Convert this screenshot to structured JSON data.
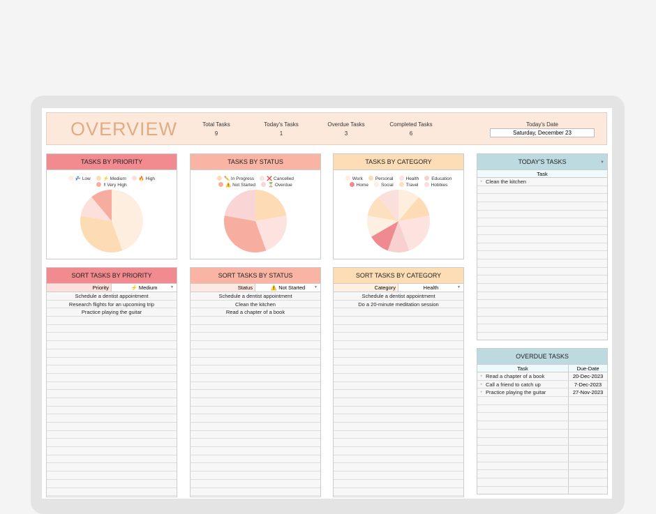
{
  "header": {
    "title": "OVERVIEW",
    "stats": [
      {
        "label": "Total Tasks",
        "value": "9"
      },
      {
        "label": "Today's Tasks",
        "value": "1"
      },
      {
        "label": "Overdue Tasks",
        "value": "3"
      },
      {
        "label": "Completed Tasks",
        "value": "6"
      }
    ],
    "date_label": "Today's Date",
    "date_value": "Saturday, December 23"
  },
  "charts": [
    {
      "title": "TASKS BY PRIORITY",
      "header_color": "#f28b8f",
      "legend_rows": [
        [
          0,
          1,
          2
        ],
        [
          3
        ]
      ],
      "chart_data": {
        "type": "pie",
        "labels": [
          "💤 Low",
          "⚡ Medium",
          "🔥 High",
          "‼ Very High"
        ],
        "values": [
          4,
          3,
          1,
          1
        ],
        "colors": [
          "#fdeee0",
          "#fddcb5",
          "#fbe0dc",
          "#f6ada0"
        ]
      }
    },
    {
      "title": "TASKS BY STATUS",
      "header_color": "#f9b4a4",
      "legend_rows": [
        [
          0,
          1
        ],
        [
          2,
          3
        ]
      ],
      "chart_data": {
        "type": "pie",
        "labels": [
          "✏️ In Progress",
          "❌ Cancelled",
          "⚠️ Not Started",
          "⏳ Overdue"
        ],
        "values": [
          2,
          2,
          3,
          2
        ],
        "colors": [
          "#fddcb5",
          "#fde3df",
          "#f7ad9f",
          "#f9d5d5"
        ]
      }
    },
    {
      "title": "TASKS BY CATEGORY",
      "header_color": "#fdddb5",
      "legend_rows": [
        [
          0,
          1,
          2,
          3
        ],
        [
          4,
          5,
          6,
          7
        ]
      ],
      "chart_data": {
        "type": "pie",
        "labels": [
          "Work",
          "Personal",
          "Health",
          "Education",
          "Home",
          "Social",
          "Travel",
          "Hobbies"
        ],
        "values": [
          1,
          1,
          2,
          1,
          1,
          1,
          1,
          1
        ],
        "colors": [
          "#fdeedd",
          "#fddcb5",
          "#fde3df",
          "#f9d0d0",
          "#ef8a90",
          "#fdf0e2",
          "#fde0c0",
          "#fbdfdc"
        ]
      }
    }
  ],
  "sorts": [
    {
      "title": "SORT TASKS BY PRIORITY",
      "header_color": "#f28b8f",
      "filter_bg": "#fde0dc",
      "filter_label": "Priority",
      "filter_value": "⚡ Medium",
      "tasks": [
        "Schedule a dentist appointment",
        "Research flights for an upcoming trip",
        "Practice playing the guitar"
      ]
    },
    {
      "title": "SORT TASKS BY STATUS",
      "header_color": "#f9b4a4",
      "filter_bg": "#fde8e2",
      "filter_label": "Status",
      "filter_value": "⚠️ Not Started",
      "tasks": [
        "Schedule a dentist appointment",
        "Clean the kitchen",
        "Read a chapter of a book"
      ]
    },
    {
      "title": "SORT TASKS BY CATEGORY",
      "header_color": "#fdddb5",
      "filter_bg": "#fdefe2",
      "filter_label": "Category",
      "filter_value": "Health",
      "tasks": [
        "Schedule a dentist appointment",
        "Do a 20-minute meditation session"
      ]
    }
  ],
  "today": {
    "title": "TODAY'S TASKS",
    "column": "Task",
    "tasks": [
      "Clean the kitchen"
    ]
  },
  "overdue": {
    "title": "OVERDUE TASKS",
    "columns": [
      "Task",
      "Due-Date"
    ],
    "rows": [
      [
        "Read a chapter of a book",
        "20-Dec-2023"
      ],
      [
        "Call a friend to catch up",
        "7-Dec-2023"
      ],
      [
        "Practice playing the guitar",
        "27-Nov-2023"
      ]
    ]
  },
  "accent_teal": "#bcdadf"
}
